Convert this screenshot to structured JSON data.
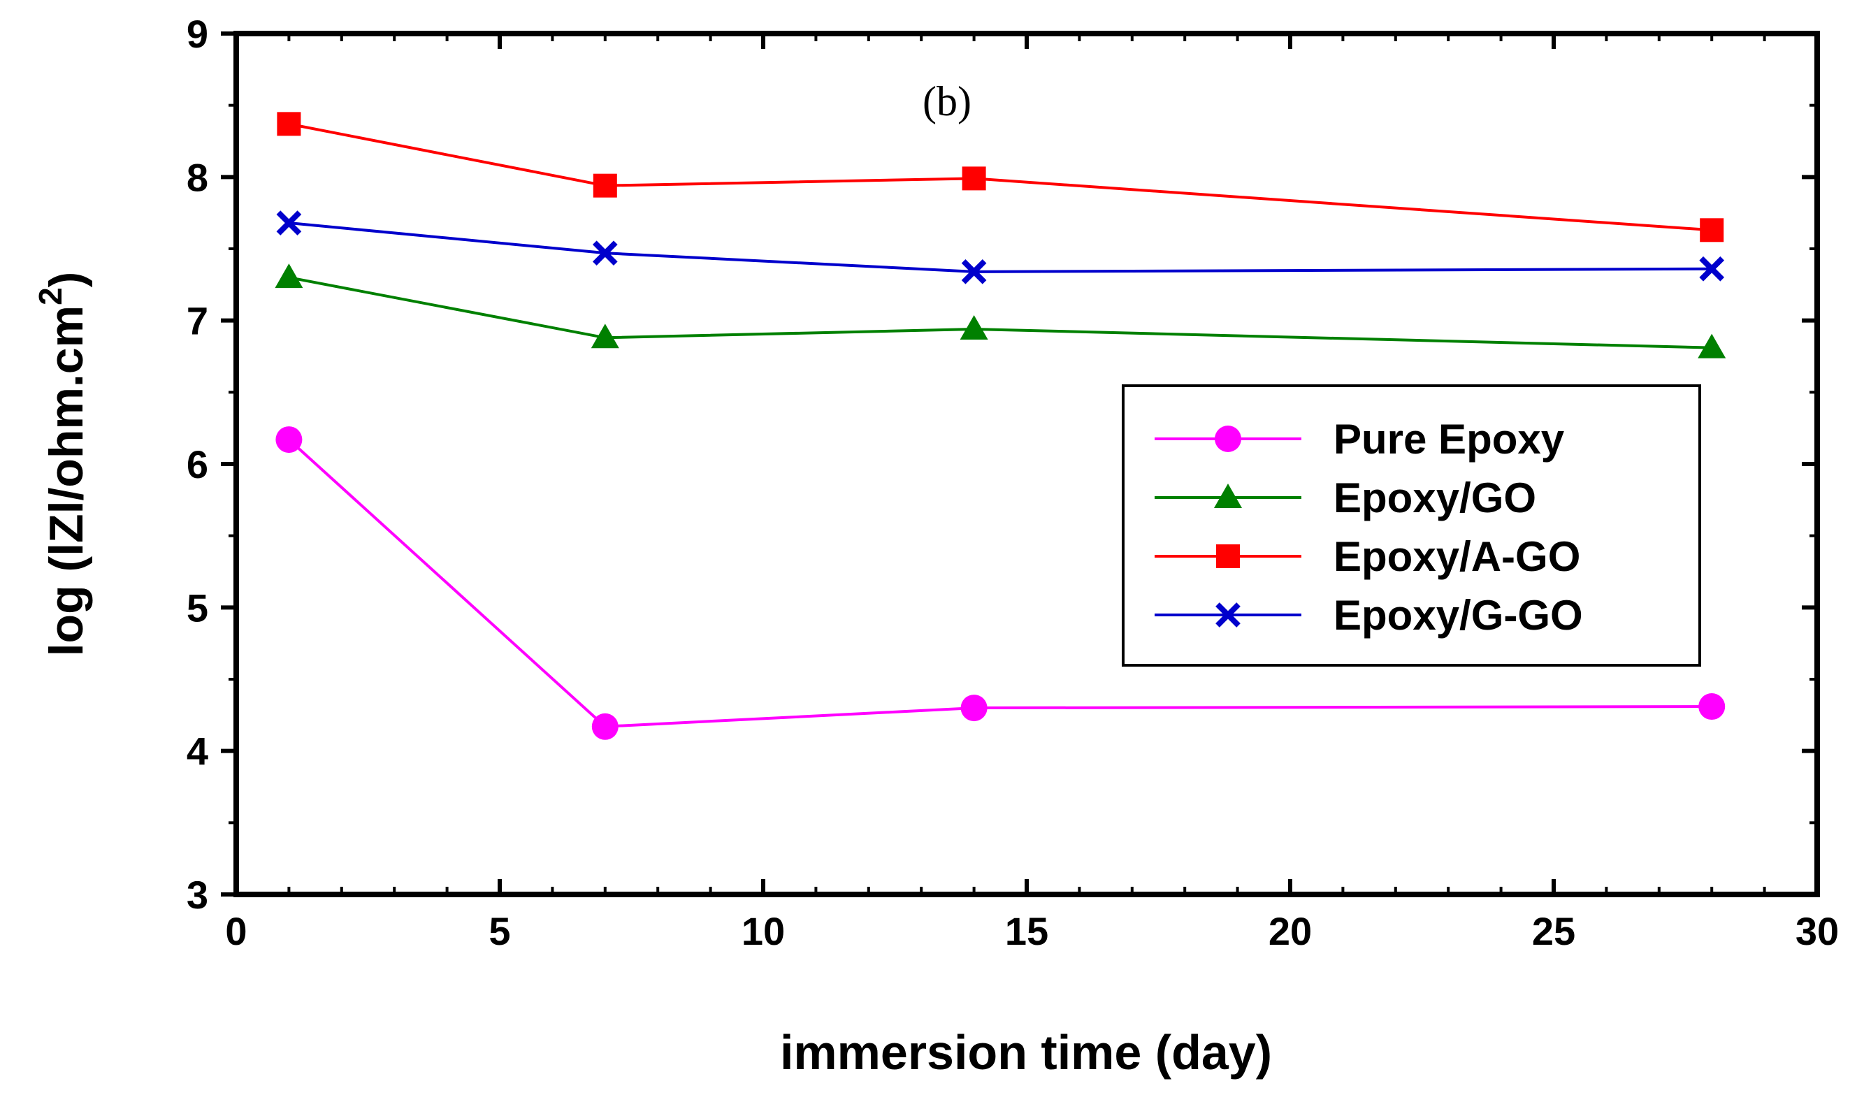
{
  "chart_data": {
    "type": "line",
    "panel_label": "(b)",
    "xlabel": "immersion time (day)",
    "ylabel_prefix": "log (lZl/ohm.cm",
    "ylabel_sup": "2",
    "ylabel_suffix": ")",
    "xlim": [
      0,
      30
    ],
    "ylim": [
      3,
      9
    ],
    "xticks": [
      0,
      5,
      10,
      15,
      20,
      25,
      30
    ],
    "yticks": [
      3,
      4,
      5,
      6,
      7,
      8,
      9
    ],
    "legend_position": "right-middle",
    "x": [
      1,
      7,
      14,
      28
    ],
    "series": [
      {
        "name": "Pure Epoxy",
        "color": "#ff00ff",
        "marker": "circle",
        "values": [
          6.17,
          4.17,
          4.3,
          4.31
        ]
      },
      {
        "name": "Epoxy/GO",
        "color": "#008000",
        "marker": "triangle",
        "values": [
          7.3,
          6.88,
          6.94,
          6.81
        ]
      },
      {
        "name": "Epoxy/A-GO",
        "color": "#ff0000",
        "marker": "square",
        "values": [
          8.37,
          7.94,
          7.99,
          7.63
        ]
      },
      {
        "name": "Epoxy/G-GO",
        "color": "#0000cc",
        "marker": "x",
        "values": [
          7.68,
          7.47,
          7.34,
          7.36
        ]
      }
    ]
  }
}
